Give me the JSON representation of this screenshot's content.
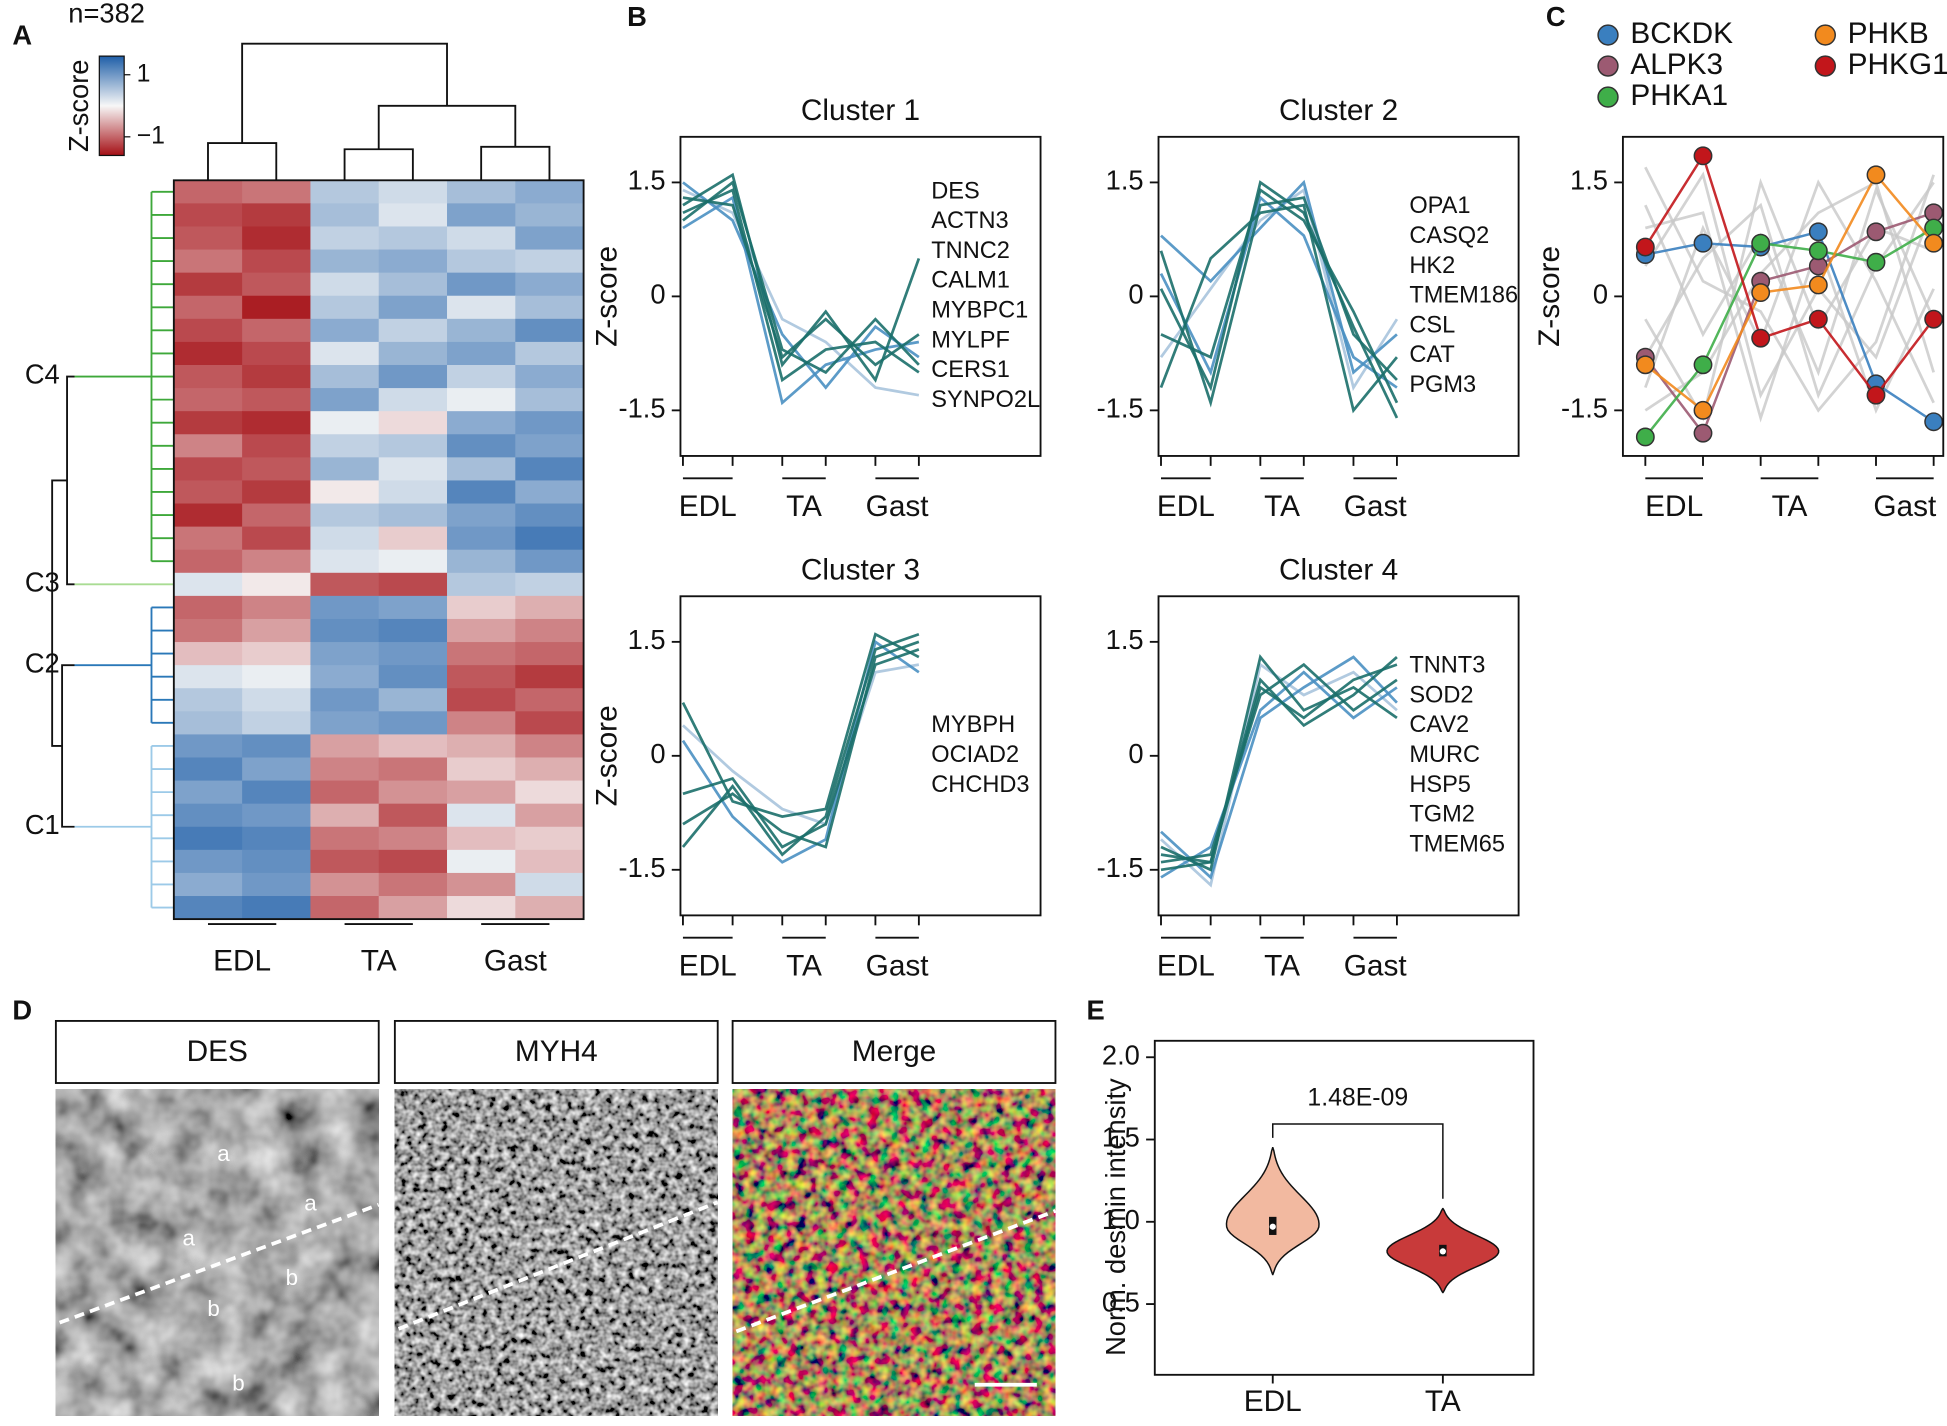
{
  "panel_labels": [
    "A",
    "B",
    "C",
    "D",
    "E"
  ],
  "micrographs": {
    "titles": [
      "DES",
      "MYH4",
      "Merge"
    ],
    "letters": [
      "a",
      "a",
      "a",
      "b",
      "b",
      "b"
    ]
  },
  "chart_data": [
    {
      "type": "heatmap",
      "title": "n=382",
      "colorbar_label": "Z-score",
      "clim": [
        -1.6,
        1.6
      ],
      "cticks": [
        1,
        {
          "value": -1,
          "label": "−1"
        }
      ],
      "groups": [
        "EDL",
        "TA",
        "Gast"
      ],
      "clusters": [
        {
          "name": "C4",
          "color": "#3ea83a",
          "rows": [
            [
              -1.0,
              -0.9,
              0.5,
              0.3,
              0.6,
              0.8
            ],
            [
              -1.2,
              -1.3,
              0.6,
              0.2,
              0.9,
              0.7
            ],
            [
              -1.1,
              -1.4,
              0.4,
              0.5,
              0.3,
              0.9
            ],
            [
              -0.9,
              -1.2,
              0.7,
              0.8,
              0.5,
              0.4
            ],
            [
              -1.3,
              -1.1,
              0.3,
              0.6,
              1.0,
              0.8
            ],
            [
              -1.0,
              -1.5,
              0.5,
              0.9,
              0.2,
              0.6
            ],
            [
              -1.2,
              -1.0,
              0.8,
              0.4,
              0.7,
              1.1
            ],
            [
              -1.4,
              -1.2,
              0.2,
              0.7,
              0.9,
              0.5
            ],
            [
              -1.1,
              -1.3,
              0.6,
              1.0,
              0.4,
              0.8
            ],
            [
              -1.0,
              -1.1,
              0.9,
              0.3,
              0.1,
              0.6
            ],
            [
              -1.3,
              -1.4,
              0.1,
              -0.2,
              0.8,
              1.0
            ],
            [
              -0.8,
              -1.2,
              0.4,
              0.5,
              1.1,
              0.9
            ],
            [
              -1.2,
              -1.1,
              0.7,
              0.2,
              0.6,
              1.2
            ],
            [
              -1.1,
              -1.3,
              -0.1,
              0.3,
              1.2,
              0.8
            ],
            [
              -1.4,
              -1.0,
              0.5,
              0.6,
              0.9,
              1.1
            ],
            [
              -0.9,
              -1.2,
              0.3,
              -0.3,
              1.0,
              1.3
            ],
            [
              -1.0,
              -0.8,
              0.2,
              0.1,
              0.7,
              1.0
            ]
          ]
        },
        {
          "name": "C3",
          "color": "#a9dc93",
          "rows": [
            [
              0.2,
              -0.1,
              -1.1,
              -1.2,
              0.5,
              0.4
            ]
          ]
        },
        {
          "name": "C2",
          "color": "#2a78b8",
          "rows": [
            [
              -1.0,
              -0.8,
              1.0,
              0.9,
              -0.3,
              -0.5
            ],
            [
              -0.9,
              -0.6,
              1.1,
              1.2,
              -0.6,
              -0.8
            ],
            [
              -0.4,
              -0.3,
              0.9,
              1.0,
              -0.9,
              -1.0
            ],
            [
              0.2,
              0.1,
              0.8,
              1.1,
              -1.1,
              -1.3
            ],
            [
              0.5,
              0.3,
              1.0,
              0.7,
              -1.2,
              -1.0
            ],
            [
              0.6,
              0.4,
              0.9,
              1.0,
              -0.8,
              -1.2
            ]
          ]
        },
        {
          "name": "C1",
          "color": "#9ccae8",
          "rows": [
            [
              1.0,
              1.1,
              -0.6,
              -0.4,
              -0.5,
              -0.8
            ],
            [
              1.2,
              0.9,
              -0.8,
              -0.9,
              -0.3,
              -0.5
            ],
            [
              0.9,
              1.2,
              -1.0,
              -0.7,
              -0.6,
              -0.2
            ],
            [
              1.1,
              1.0,
              -0.5,
              -1.1,
              0.2,
              -0.6
            ],
            [
              1.3,
              1.2,
              -0.9,
              -0.8,
              -0.4,
              -0.3
            ],
            [
              1.0,
              1.1,
              -1.1,
              -1.2,
              0.1,
              -0.4
            ],
            [
              0.8,
              1.0,
              -0.7,
              -0.9,
              -0.7,
              0.3
            ],
            [
              1.2,
              1.3,
              -1.0,
              -0.6,
              -0.2,
              -0.5
            ]
          ]
        }
      ]
    },
    {
      "type": "line",
      "title": "Cluster 1",
      "ylabel": "Z-score",
      "ylim": [
        -2.1,
        2.1
      ],
      "yticks": [
        1.5,
        0,
        -1.5
      ],
      "categories": [
        null,
        null,
        null,
        null,
        null,
        null
      ],
      "groups": [
        "EDL",
        "TA",
        "Gast"
      ],
      "annotations": [
        "DES",
        "ACTN3",
        "TNNC2",
        "CALM1",
        "MYBPC1",
        "MYLPF",
        "CERS1",
        "SYNPO2L"
      ],
      "series": [
        {
          "color": "#a9c4dd",
          "values": [
            1.4,
            1.1,
            -0.3,
            -0.6,
            -1.2,
            -1.3
          ]
        },
        {
          "color": "#4a90c2",
          "values": [
            1.5,
            1.0,
            -0.5,
            -1.2,
            -0.4,
            -0.8
          ]
        },
        {
          "color": "#4a90c2",
          "values": [
            0.9,
            1.3,
            -1.4,
            -0.9,
            -0.7,
            -0.6
          ]
        },
        {
          "color": "#1b6f6a",
          "values": [
            1.3,
            1.2,
            -0.8,
            -0.3,
            -0.9,
            -0.5
          ]
        },
        {
          "color": "#1b6f6a",
          "values": [
            1.1,
            1.4,
            -1.1,
            -0.7,
            -0.6,
            -1.0
          ]
        },
        {
          "color": "#1b6f6a",
          "values": [
            1.2,
            1.6,
            -0.9,
            -0.2,
            -1.1,
            0.5
          ]
        },
        {
          "color": "#1b6f6a",
          "values": [
            1.0,
            1.5,
            -0.7,
            -1.0,
            -0.3,
            -0.9
          ]
        }
      ]
    },
    {
      "type": "line",
      "title": "Cluster 2",
      "ylim": [
        -2.1,
        2.1
      ],
      "yticks": [
        1.5,
        0,
        -1.5
      ],
      "categories": [
        null,
        null,
        null,
        null,
        null,
        null
      ],
      "groups": [
        "EDL",
        "TA",
        "Gast"
      ],
      "annotations": [
        "OPA1",
        "CASQ2",
        "HK2",
        "TMEM186",
        "CSL",
        "CAT",
        "PGM3"
      ],
      "series": [
        {
          "color": "#a9c4dd",
          "values": [
            -0.8,
            0.1,
            1.0,
            1.4,
            -1.2,
            -0.3
          ]
        },
        {
          "color": "#4a90c2",
          "values": [
            0.8,
            0.2,
            0.9,
            1.5,
            -1.0,
            -0.5
          ]
        },
        {
          "color": "#4a90c2",
          "values": [
            0.3,
            -1.0,
            1.3,
            0.8,
            -0.8,
            -1.2
          ]
        },
        {
          "color": "#1b6f6a",
          "values": [
            0.6,
            -1.4,
            1.2,
            1.3,
            -0.5,
            -1.1
          ]
        },
        {
          "color": "#1b6f6a",
          "values": [
            -0.5,
            -0.8,
            1.4,
            1.0,
            -0.2,
            -1.4
          ]
        },
        {
          "color": "#1b6f6a",
          "values": [
            -1.2,
            0.5,
            1.1,
            1.2,
            -1.5,
            -0.8
          ]
        },
        {
          "color": "#1b6f6a",
          "values": [
            0.1,
            -1.2,
            1.5,
            1.1,
            -0.4,
            -1.6
          ]
        }
      ]
    },
    {
      "type": "line",
      "title": "Cluster 3",
      "ylabel": "Z-score",
      "ylim": [
        -2.1,
        2.1
      ],
      "yticks": [
        1.5,
        0,
        -1.5
      ],
      "categories": [
        null,
        null,
        null,
        null,
        null,
        null
      ],
      "groups": [
        "EDL",
        "TA",
        "Gast"
      ],
      "annotations": [
        "MYBPH",
        "OCIAD2",
        "CHCHD3"
      ],
      "series": [
        {
          "color": "#a9c4dd",
          "values": [
            0.4,
            -0.2,
            -0.7,
            -0.9,
            1.1,
            1.2
          ]
        },
        {
          "color": "#4a90c2",
          "values": [
            0.2,
            -0.8,
            -1.4,
            -1.1,
            1.5,
            1.1
          ]
        },
        {
          "color": "#1b6f6a",
          "values": [
            0.7,
            -0.6,
            -0.8,
            -0.7,
            1.6,
            1.3
          ]
        },
        {
          "color": "#1b6f6a",
          "values": [
            -0.5,
            -0.3,
            -1.2,
            -0.9,
            1.2,
            1.4
          ]
        },
        {
          "color": "#1b6f6a",
          "values": [
            -0.9,
            -0.5,
            -1.0,
            -1.2,
            1.3,
            1.5
          ]
        },
        {
          "color": "#1b6f6a",
          "values": [
            -1.2,
            -0.4,
            -1.3,
            -0.8,
            1.4,
            1.6
          ]
        }
      ]
    },
    {
      "type": "line",
      "title": "Cluster 4",
      "ylim": [
        -2.1,
        2.1
      ],
      "yticks": [
        1.5,
        0,
        -1.5
      ],
      "categories": [
        null,
        null,
        null,
        null,
        null,
        null
      ],
      "groups": [
        "EDL",
        "TA",
        "Gast"
      ],
      "annotations": [
        "TNNT3",
        "SOD2",
        "CAV2",
        "MURC",
        "HSP5",
        "TGM2",
        "TMEM65"
      ],
      "series": [
        {
          "color": "#a9c4dd",
          "values": [
            -1.1,
            -1.7,
            1.2,
            0.8,
            1.1,
            0.6
          ]
        },
        {
          "color": "#4a90c2",
          "values": [
            -1.0,
            -1.6,
            0.5,
            0.9,
            1.3,
            0.7
          ]
        },
        {
          "color": "#4a90c2",
          "values": [
            -1.6,
            -1.2,
            0.6,
            1.1,
            0.5,
            0.9
          ]
        },
        {
          "color": "#1b6f6a",
          "values": [
            -1.2,
            -1.5,
            1.3,
            0.6,
            0.9,
            0.5
          ]
        },
        {
          "color": "#1b6f6a",
          "values": [
            -1.4,
            -1.3,
            0.8,
            1.2,
            0.6,
            1.0
          ]
        },
        {
          "color": "#1b6f6a",
          "values": [
            -1.3,
            -1.4,
            1.0,
            0.4,
            0.8,
            1.3
          ]
        },
        {
          "color": "#1b6f6a",
          "values": [
            -1.5,
            -1.4,
            0.9,
            0.5,
            1.0,
            1.2
          ]
        }
      ]
    },
    {
      "type": "line",
      "ylabel": "Z-score",
      "ylim": [
        -2.1,
        2.1
      ],
      "yticks": [
        1.5,
        0,
        -1.5
      ],
      "markers": true,
      "categories": [
        null,
        null,
        null,
        null,
        null,
        null
      ],
      "groups": [
        "EDL",
        "TA",
        "Gast"
      ],
      "series": [
        {
          "color": "#c8c8c8",
          "values": [
            1.2,
            -0.5,
            0.8,
            -1.0,
            1.4,
            -0.3
          ]
        },
        {
          "color": "#c8c8c8",
          "values": [
            -1.2,
            0.9,
            -0.6,
            1.5,
            0.2,
            -1.4
          ]
        },
        {
          "color": "#c8c8c8",
          "values": [
            0.4,
            1.6,
            -1.3,
            0.1,
            -0.8,
            1.2
          ]
        },
        {
          "color": "#c8c8c8",
          "values": [
            -0.3,
            -1.6,
            1.5,
            -0.4,
            0.9,
            0.6
          ]
        },
        {
          "color": "#c8c8c8",
          "values": [
            1.7,
            0.2,
            -0.2,
            -1.5,
            -0.6,
            1.6
          ]
        },
        {
          "color": "#c8c8c8",
          "values": [
            -1.5,
            -1.0,
            0.3,
            1.1,
            1.5,
            -1.0
          ]
        },
        {
          "color": "#c8c8c8",
          "values": [
            0.9,
            1.1,
            -1.6,
            0.7,
            -1.5,
            0.1
          ]
        },
        {
          "color": "#c8c8c8",
          "values": [
            -0.8,
            0.5,
            1.2,
            -1.3,
            0.4,
            1.5
          ]
        },
        {
          "name": "BCKDK",
          "color": "#3a7fbf",
          "values": [
            0.55,
            0.7,
            0.65,
            0.85,
            -1.15,
            -1.65
          ]
        },
        {
          "name": "ALPK3",
          "color": "#9c5a72",
          "values": [
            -0.8,
            -1.8,
            0.2,
            0.4,
            0.85,
            1.1
          ]
        },
        {
          "name": "PHKA1",
          "color": "#3fae49",
          "values": [
            -1.85,
            -0.9,
            0.7,
            0.6,
            0.45,
            0.9
          ]
        },
        {
          "name": "PHKB",
          "color": "#f28a1e",
          "values": [
            -0.9,
            -1.5,
            0.05,
            0.15,
            1.6,
            0.7
          ]
        },
        {
          "name": "PHKG1",
          "color": "#c2161b",
          "values": [
            0.65,
            1.85,
            -0.55,
            -0.3,
            -1.3,
            -0.3
          ]
        }
      ]
    },
    {
      "type": "violin",
      "ylabel": "Norm. desmin intensity",
      "categories": [
        "EDL",
        "TA"
      ],
      "colors": [
        "#f2b9a0",
        "#c83a3a"
      ],
      "ylim": [
        0.07,
        2.1
      ],
      "yticks": [
        {
          "value": 2,
          "label": "2.0"
        },
        1.5,
        {
          "value": 1,
          "label": "1.0"
        },
        0.5
      ],
      "medians": [
        0.97,
        0.82
      ],
      "q1": [
        0.92,
        0.79
      ],
      "q3": [
        1.03,
        0.86
      ],
      "mins": [
        0.68,
        0.57
      ],
      "maxs": [
        1.45,
        1.08
      ],
      "annotation": "1.48E-09"
    }
  ]
}
